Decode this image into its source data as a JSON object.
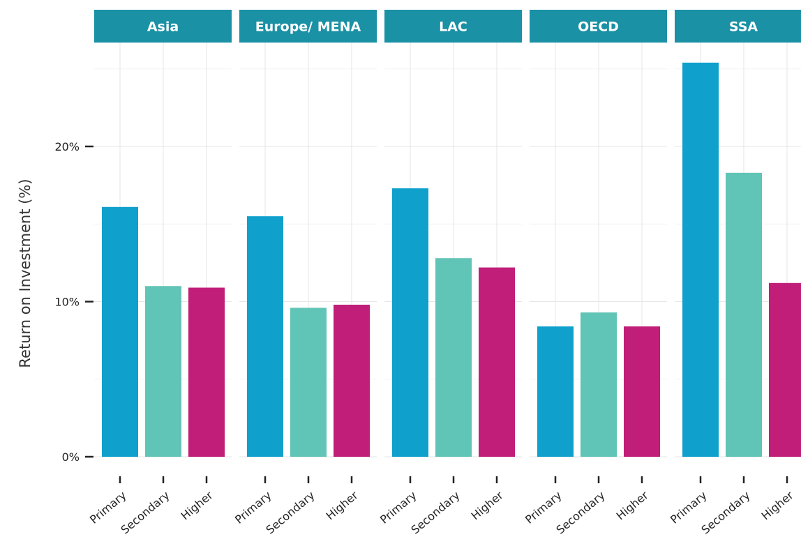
{
  "chart_data": {
    "type": "bar",
    "ylabel": "Return on Investment (%)",
    "ylim": [
      0,
      26.5
    ],
    "yticks": [
      {
        "value": 0,
        "label": "0%"
      },
      {
        "value": 10,
        "label": "10%"
      },
      {
        "value": 20,
        "label": "20%"
      }
    ],
    "grid": true,
    "legend": "none",
    "categories": [
      "Primary",
      "Secondary",
      "Higher"
    ],
    "colors": {
      "Primary": "#0FA0CC",
      "Secondary": "#60C4B6",
      "Higher": "#C01E79"
    },
    "strip_color": "#1A91A5",
    "panels": [
      {
        "name": "Asia",
        "values": [
          16.1,
          11.0,
          10.9
        ]
      },
      {
        "name": "Europe/ MENA",
        "values": [
          15.5,
          9.6,
          9.8
        ]
      },
      {
        "name": "LAC",
        "values": [
          17.3,
          12.8,
          12.2
        ]
      },
      {
        "name": "OECD",
        "values": [
          8.4,
          9.3,
          8.4
        ]
      },
      {
        "name": "SSA",
        "values": [
          25.4,
          18.3,
          11.2
        ]
      }
    ]
  }
}
